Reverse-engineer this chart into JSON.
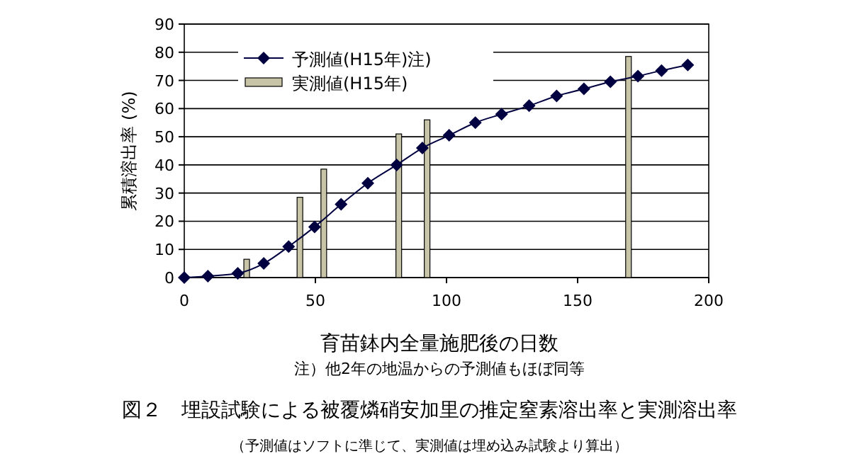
{
  "chart_data": {
    "type": "line",
    "title": "図２　埋設試験による被覆燐硝安加里の推定窒素溶出率と実測溶出率",
    "subtitle": "（予測値はソフトに準じて、実測値は埋め込み試験より算出）",
    "xlabel": "育苗鉢内全量施肥後の日数",
    "ylabel": "累積溶出率 (%)",
    "annotations": [
      "注）他2年の地温からの予測値もほぼ同等"
    ],
    "series": [
      {
        "name": "予測値(H15年)注)",
        "color": "#000040",
        "x": [
          0,
          9,
          20.4,
          30.3,
          39.8,
          49.7,
          59.8,
          70,
          81,
          90.8,
          101,
          111,
          121,
          131.5,
          142,
          152.4,
          162.5,
          173,
          182,
          192
        ],
        "values": [
          0,
          0.5,
          1.5,
          5,
          11,
          18,
          26,
          33.5,
          40,
          46,
          50.5,
          55,
          58,
          61,
          64.5,
          67,
          69.5,
          71.5,
          73.5,
          75.5
        ],
        "marker": "diamond"
      },
      {
        "name": "実測値(H15年)",
        "type": "bar",
        "color": "#c8c4a8",
        "x": [
          23.8,
          44.1,
          53.2,
          81.8,
          92.6,
          169.4
        ],
        "values": [
          6.5,
          28.5,
          38.5,
          51,
          56,
          78.5
        ]
      }
    ],
    "xlim": [
      0,
      200
    ],
    "xticks": [
      0,
      50,
      100,
      150,
      200
    ],
    "ylim": [
      0,
      90
    ],
    "yticks": [
      0,
      10,
      20,
      30,
      40,
      50,
      60,
      70,
      80,
      90
    ],
    "grid": "y",
    "legend": "top left"
  }
}
